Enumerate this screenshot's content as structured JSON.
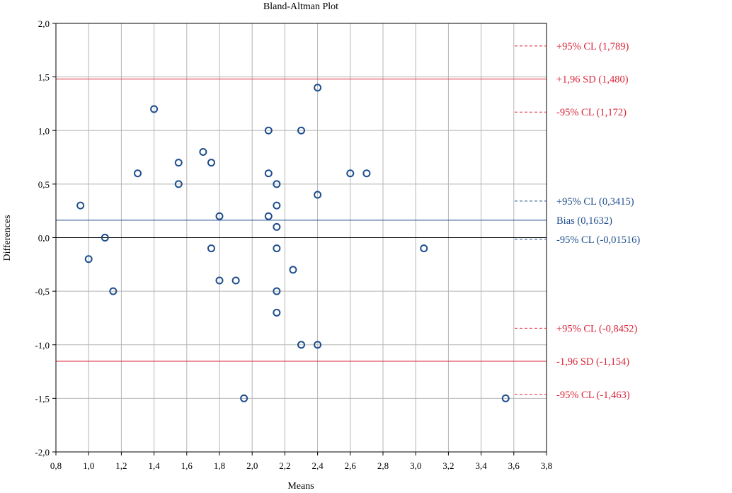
{
  "chart_data": {
    "type": "scatter",
    "title": "Bland-Altman Plot",
    "xlabel": "Means",
    "ylabel": "Differences",
    "xlim": [
      0.8,
      3.8
    ],
    "ylim": [
      -2.0,
      2.0
    ],
    "x_ticks": [
      "0,8",
      "1,0",
      "1,2",
      "1,4",
      "1,6",
      "1,8",
      "2,0",
      "2,2",
      "2,4",
      "2,6",
      "2,8",
      "3,0",
      "3,2",
      "3,4",
      "3,6",
      "3,8"
    ],
    "y_ticks": [
      "2,0",
      "1,5",
      "1,0",
      "0,5",
      "0,0",
      "-0,5",
      "-1,0",
      "-1,5",
      "-2,0"
    ],
    "grid": true,
    "series": [
      {
        "color": "#1f4e8c",
        "points": [
          [
            0.95,
            0.3
          ],
          [
            1.0,
            -0.2
          ],
          [
            1.1,
            0.0
          ],
          [
            1.15,
            -0.5
          ],
          [
            1.3,
            0.6
          ],
          [
            1.4,
            1.2
          ],
          [
            1.55,
            0.7
          ],
          [
            1.55,
            0.5
          ],
          [
            1.7,
            0.8
          ],
          [
            1.75,
            0.7
          ],
          [
            1.75,
            -0.1
          ],
          [
            1.8,
            0.2
          ],
          [
            1.8,
            -0.4
          ],
          [
            1.9,
            -0.4
          ],
          [
            1.95,
            -1.5
          ],
          [
            2.1,
            1.0
          ],
          [
            2.1,
            0.6
          ],
          [
            2.1,
            0.2
          ],
          [
            2.15,
            0.5
          ],
          [
            2.15,
            0.3
          ],
          [
            2.15,
            0.1
          ],
          [
            2.15,
            -0.1
          ],
          [
            2.15,
            -0.5
          ],
          [
            2.15,
            -0.7
          ],
          [
            2.25,
            -0.3
          ],
          [
            2.3,
            1.0
          ],
          [
            2.3,
            -1.0
          ],
          [
            2.4,
            1.4
          ],
          [
            2.4,
            0.4
          ],
          [
            2.4,
            -1.0
          ],
          [
            2.6,
            0.6
          ],
          [
            2.7,
            0.6
          ],
          [
            3.05,
            -0.1
          ],
          [
            3.55,
            -1.5
          ]
        ]
      }
    ],
    "reference_lines": [
      {
        "label": "+1,96 SD (1,480)",
        "y": 1.48,
        "color": "#d9263a",
        "style": "solid"
      },
      {
        "label": "Bias (0,1632)",
        "y": 0.1632,
        "color": "#1f4e8c",
        "style": "solid"
      },
      {
        "label": "-1,96 SD (-1,154)",
        "y": -1.154,
        "color": "#d9263a",
        "style": "solid"
      }
    ],
    "confidence_limits": [
      {
        "label": "+95% CL (1,789)",
        "y": 1.789,
        "color": "#d9263a"
      },
      {
        "label": "-95% CL (1,172)",
        "y": 1.172,
        "color": "#d9263a"
      },
      {
        "label": "+95% CL (0,3415)",
        "y": 0.3415,
        "color": "#1f4e8c"
      },
      {
        "label": "-95% CL (-0,01516)",
        "y": -0.01516,
        "color": "#1f4e8c"
      },
      {
        "label": "+95% CL (-0,8452)",
        "y": -0.8452,
        "color": "#d9263a"
      },
      {
        "label": "-95% CL (-1,463)",
        "y": -1.463,
        "color": "#d9263a"
      }
    ]
  }
}
